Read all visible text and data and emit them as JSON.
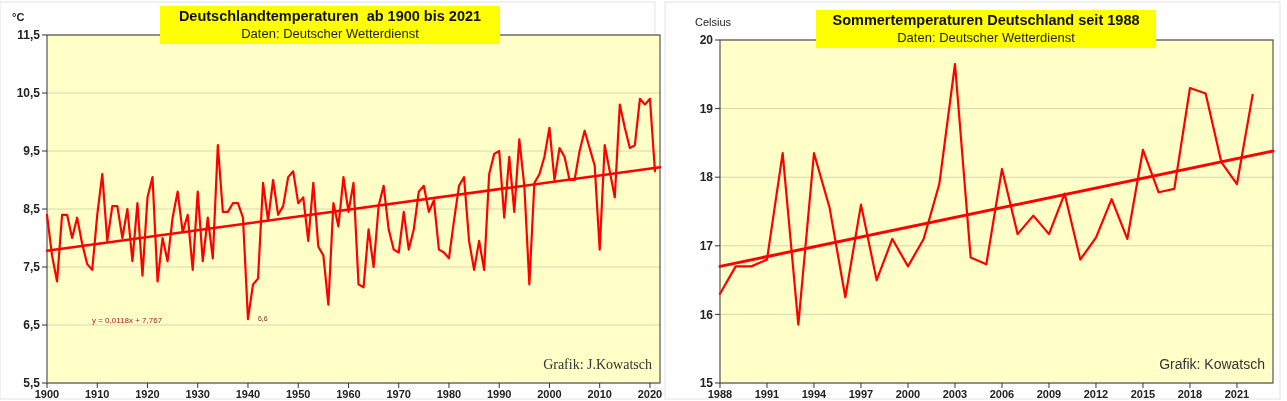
{
  "chart_data": [
    {
      "type": "line",
      "title": "Deutschlandtemperaturen  ab 1900 bis 2021",
      "subtitle": "Daten: Deutscher Wetterdienst",
      "ylabel": "°C",
      "x": [
        1900,
        1901,
        1902,
        1903,
        1904,
        1905,
        1906,
        1907,
        1908,
        1909,
        1910,
        1911,
        1912,
        1913,
        1914,
        1915,
        1916,
        1917,
        1918,
        1919,
        1920,
        1921,
        1922,
        1923,
        1924,
        1925,
        1926,
        1927,
        1928,
        1929,
        1930,
        1931,
        1932,
        1933,
        1934,
        1935,
        1936,
        1937,
        1938,
        1939,
        1940,
        1941,
        1942,
        1943,
        1944,
        1945,
        1946,
        1947,
        1948,
        1949,
        1950,
        1951,
        1952,
        1953,
        1954,
        1955,
        1956,
        1957,
        1958,
        1959,
        1960,
        1961,
        1962,
        1963,
        1964,
        1965,
        1966,
        1967,
        1968,
        1969,
        1970,
        1971,
        1972,
        1973,
        1974,
        1975,
        1976,
        1977,
        1978,
        1979,
        1980,
        1981,
        1982,
        1983,
        1984,
        1985,
        1986,
        1987,
        1988,
        1989,
        1990,
        1991,
        1992,
        1993,
        1994,
        1995,
        1996,
        1997,
        1998,
        1999,
        2000,
        2001,
        2002,
        2003,
        2004,
        2005,
        2006,
        2007,
        2008,
        2009,
        2010,
        2011,
        2012,
        2013,
        2014,
        2015,
        2016,
        2017,
        2018,
        2019,
        2020,
        2021
      ],
      "series": [
        {
          "color": "#ff0000",
          "values": [
            8.4,
            7.7,
            7.25,
            8.4,
            8.4,
            8.0,
            8.35,
            7.9,
            7.55,
            7.45,
            8.4,
            9.1,
            7.95,
            8.55,
            8.55,
            8.0,
            8.5,
            7.6,
            8.6,
            7.35,
            8.7,
            9.05,
            7.25,
            8.0,
            7.6,
            8.35,
            8.8,
            8.1,
            8.4,
            7.45,
            8.8,
            7.6,
            8.35,
            7.65,
            9.6,
            8.45,
            8.45,
            8.6,
            8.6,
            8.35,
            6.6,
            7.2,
            7.3,
            8.95,
            8.3,
            9.0,
            8.4,
            8.55,
            9.05,
            9.15,
            8.6,
            8.7,
            7.95,
            8.95,
            7.85,
            7.7,
            6.85,
            8.6,
            8.2,
            9.05,
            8.45,
            8.95,
            7.2,
            7.15,
            8.15,
            7.5,
            8.55,
            8.9,
            8.15,
            7.8,
            7.75,
            8.45,
            7.8,
            8.15,
            8.8,
            8.9,
            8.45,
            8.65,
            7.8,
            7.75,
            7.65,
            8.3,
            8.9,
            9.05,
            7.95,
            7.45,
            7.95,
            7.45,
            9.1,
            9.45,
            9.5,
            8.35,
            9.4,
            8.45,
            9.7,
            8.9,
            7.2,
            8.95,
            9.1,
            9.4,
            9.9,
            9.0,
            9.55,
            9.4,
            9.0,
            9.0,
            9.5,
            9.85,
            9.55,
            9.25,
            7.8,
            9.6,
            9.15,
            8.7,
            10.3,
            9.9,
            9.55,
            9.6,
            10.4,
            10.3,
            10.4,
            9.15
          ]
        },
        {
          "type": "line",
          "color": "#ff0000",
          "x": [
            1900,
            2022
          ],
          "values": [
            7.78,
            9.22
          ]
        }
      ],
      "xlim": [
        1900,
        2022
      ],
      "xticks": [
        1900,
        1910,
        1920,
        1930,
        1940,
        1950,
        1960,
        1970,
        1980,
        1990,
        2000,
        2010,
        2020
      ],
      "ylim": [
        5.5,
        11.5
      ],
      "yticks": [
        {
          "value": 5.5,
          "label": "5,5"
        },
        {
          "value": 6.5,
          "label": "6,5"
        },
        {
          "value": 7.5,
          "label": "7,5"
        },
        {
          "value": 8.5,
          "label": "8,5"
        },
        {
          "value": 9.5,
          "label": "9,5"
        },
        {
          "value": 10.5,
          "label": "10,5"
        },
        {
          "value": 11.5,
          "label": "11,5"
        }
      ],
      "grid": "y",
      "marker": "none",
      "line_style": "solid",
      "annotations": [
        "y = 0,0118x + 7,767",
        {
          "text": "6,6",
          "x": 1940,
          "y": 6.6
        },
        "Grafik: J.Kowatsch"
      ]
    },
    {
      "type": "line",
      "title": "Sommertemperaturen Deutschland seit 1988",
      "subtitle": "Daten: Deutscher Wetterdienst",
      "ylabel": "Celsius",
      "x": [
        1988,
        1989,
        1990,
        1991,
        1992,
        1993,
        1994,
        1995,
        1996,
        1997,
        1998,
        1999,
        2000,
        2001,
        2002,
        2003,
        2004,
        2005,
        2006,
        2007,
        2008,
        2009,
        2010,
        2011,
        2012,
        2013,
        2014,
        2015,
        2016,
        2017,
        2018,
        2019,
        2020,
        2021,
        2022
      ],
      "series": [
        {
          "color": "#ff0000",
          "values": [
            16.3,
            16.7,
            16.7,
            16.8,
            18.35,
            15.85,
            18.35,
            17.55,
            16.25,
            17.6,
            16.5,
            17.1,
            16.7,
            17.1,
            17.9,
            19.65,
            16.83,
            16.73,
            18.12,
            17.17,
            17.44,
            17.17,
            17.76,
            16.8,
            17.12,
            17.68,
            17.1,
            18.4,
            17.78,
            17.83,
            19.3,
            19.22,
            18.22,
            17.9,
            19.2
          ]
        },
        {
          "type": "line",
          "color": "#ff0000",
          "x": [
            1988,
            2023.3
          ],
          "values": [
            16.7,
            18.38
          ]
        }
      ],
      "xlim": [
        1988,
        2023.3
      ],
      "xticks": [
        1988,
        1991,
        1994,
        1997,
        2000,
        2003,
        2006,
        2009,
        2012,
        2015,
        2018,
        2021
      ],
      "ylim": [
        15,
        20
      ],
      "yticks": [
        15,
        16,
        17,
        18,
        19,
        20
      ],
      "grid": "y",
      "marker": "none",
      "line_style": "solid",
      "annotations": [
        "Grafik: Kowatsch"
      ]
    }
  ]
}
